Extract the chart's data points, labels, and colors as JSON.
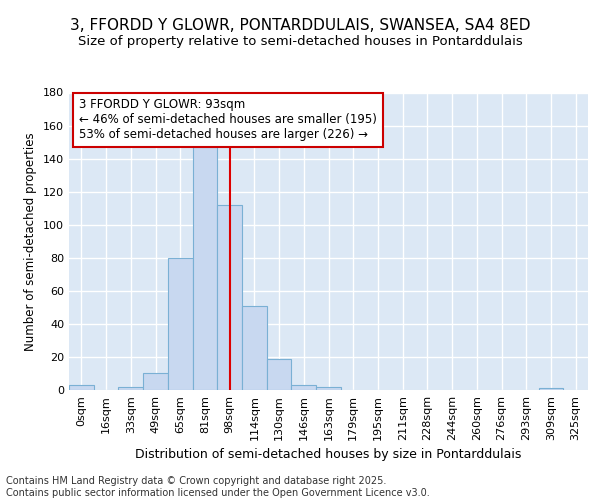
{
  "title": "3, FFORDD Y GLOWR, PONTARDDULAIS, SWANSEA, SA4 8ED",
  "subtitle": "Size of property relative to semi-detached houses in Pontarddulais",
  "xlabel": "Distribution of semi-detached houses by size in Pontarddulais",
  "ylabel": "Number of semi-detached properties",
  "categories": [
    "0sqm",
    "16sqm",
    "33sqm",
    "49sqm",
    "65sqm",
    "81sqm",
    "98sqm",
    "114sqm",
    "130sqm",
    "146sqm",
    "163sqm",
    "179sqm",
    "195sqm",
    "211sqm",
    "228sqm",
    "244sqm",
    "260sqm",
    "276sqm",
    "293sqm",
    "309sqm",
    "325sqm"
  ],
  "values": [
    3,
    0,
    2,
    10,
    80,
    147,
    112,
    51,
    19,
    3,
    2,
    0,
    0,
    0,
    0,
    0,
    0,
    0,
    0,
    1,
    0
  ],
  "bar_color": "#c8d8f0",
  "bar_edge_color": "#7ab0d4",
  "vline_x": 6.0,
  "vline_color": "#dd0000",
  "annotation_text": "3 FFORDD Y GLOWR: 93sqm\n← 46% of semi-detached houses are smaller (195)\n53% of semi-detached houses are larger (226) →",
  "annotation_box_color": "#ffffff",
  "annotation_box_edge": "#cc0000",
  "ylim": [
    0,
    180
  ],
  "yticks": [
    0,
    20,
    40,
    60,
    80,
    100,
    120,
    140,
    160,
    180
  ],
  "plot_bg_color": "#dce8f5",
  "fig_bg_color": "#ffffff",
  "grid_color": "#ffffff",
  "footer": "Contains HM Land Registry data © Crown copyright and database right 2025.\nContains public sector information licensed under the Open Government Licence v3.0.",
  "title_fontsize": 11,
  "subtitle_fontsize": 9.5,
  "xlabel_fontsize": 9,
  "ylabel_fontsize": 8.5,
  "tick_fontsize": 8,
  "annotation_fontsize": 8.5,
  "footer_fontsize": 7
}
